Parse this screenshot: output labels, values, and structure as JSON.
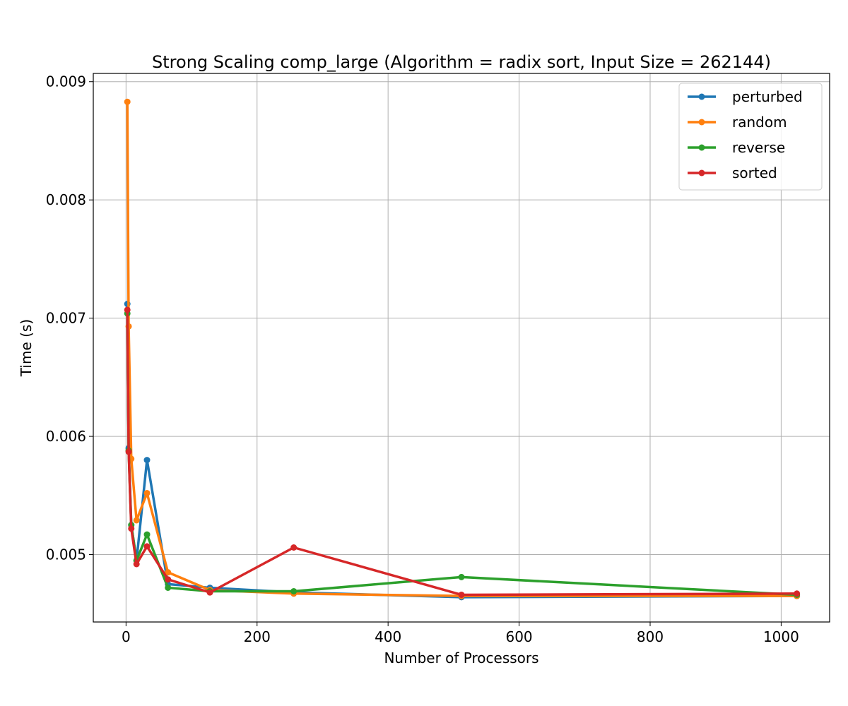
{
  "chart_data": {
    "type": "line",
    "title": "Strong Scaling comp_large (Algorithm = radix sort, Input Size = 262144)",
    "xlabel": "Number of Processors",
    "ylabel": "Time (s)",
    "x": [
      2,
      4,
      8,
      16,
      32,
      64,
      128,
      256,
      512,
      1024
    ],
    "xlim": [
      -50,
      1074
    ],
    "ylim": [
      0.00443,
      0.00907
    ],
    "xticks": [
      0,
      200,
      400,
      600,
      800,
      1000
    ],
    "xtick_labels": [
      "0",
      "200",
      "400",
      "600",
      "800",
      "1000"
    ],
    "yticks": [
      0.005,
      0.006,
      0.007,
      0.008,
      0.009
    ],
    "ytick_labels": [
      "0.005",
      "0.006",
      "0.007",
      "0.008",
      "0.009"
    ],
    "grid": true,
    "legend_position": "top-right",
    "series": [
      {
        "name": "perturbed",
        "color": "#1f77b4",
        "values": [
          0.00712,
          0.0059,
          0.00525,
          0.00495,
          0.0058,
          0.00475,
          0.00472,
          0.00468,
          0.00464,
          0.00465
        ]
      },
      {
        "name": "random",
        "color": "#ff7f0e",
        "values": [
          0.00883,
          0.00693,
          0.00581,
          0.00529,
          0.00552,
          0.00485,
          0.0047,
          0.00467,
          0.00465,
          0.00465
        ]
      },
      {
        "name": "reverse",
        "color": "#2ca02c",
        "values": [
          0.00704,
          0.00588,
          0.00525,
          0.00495,
          0.00517,
          0.00472,
          0.00469,
          0.00469,
          0.00481,
          0.00466
        ]
      },
      {
        "name": "sorted",
        "color": "#d62728",
        "values": [
          0.00707,
          0.00587,
          0.00522,
          0.00492,
          0.00507,
          0.00479,
          0.00468,
          0.00506,
          0.00466,
          0.00467
        ]
      }
    ]
  }
}
